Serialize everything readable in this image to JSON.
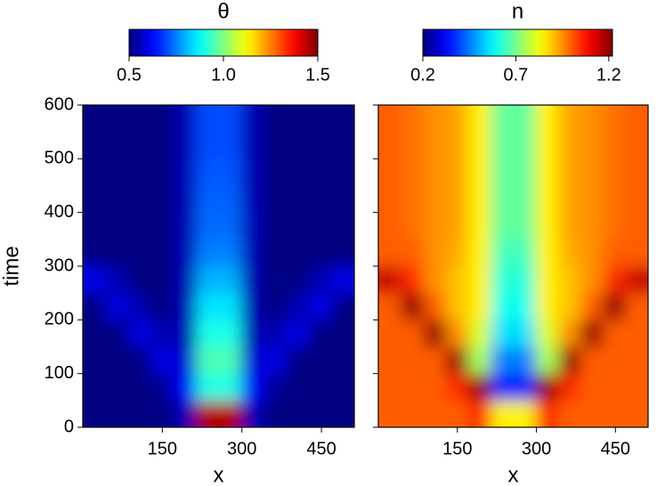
{
  "chart_data": [
    {
      "type": "heatmap",
      "title": "θ",
      "xlabel": "x",
      "ylabel": "time",
      "colormap": "jet",
      "clim": [
        0.5,
        1.5
      ],
      "cticks": [
        0.5,
        {
          "value": 1,
          "label": "1.0"
        },
        1.5
      ],
      "xlim": [
        0,
        512
      ],
      "ylim": [
        0,
        600
      ],
      "xticks": [
        150,
        300,
        450
      ],
      "yticks": [
        0,
        100,
        200,
        300,
        400,
        500,
        600
      ],
      "x": [
        21,
        64,
        107,
        149,
        192,
        235,
        277,
        320,
        363,
        405,
        448,
        491
      ],
      "y": [
        25,
        75,
        125,
        175,
        225,
        275,
        325,
        375,
        425,
        475,
        525,
        575
      ],
      "z": [
        [
          0.5,
          0.5,
          0.5,
          0.5,
          0.55,
          1.45,
          1.45,
          0.55,
          0.5,
          0.5,
          0.5,
          0.5
        ],
        [
          0.5,
          0.5,
          0.5,
          0.52,
          0.62,
          0.9,
          0.9,
          0.62,
          0.52,
          0.5,
          0.5,
          0.5
        ],
        [
          0.5,
          0.5,
          0.5,
          0.6,
          0.58,
          0.95,
          0.95,
          0.58,
          0.6,
          0.5,
          0.5,
          0.5
        ],
        [
          0.5,
          0.5,
          0.6,
          0.55,
          0.55,
          0.9,
          0.9,
          0.55,
          0.55,
          0.6,
          0.5,
          0.5
        ],
        [
          0.5,
          0.6,
          0.55,
          0.5,
          0.55,
          0.85,
          0.85,
          0.55,
          0.5,
          0.55,
          0.6,
          0.5
        ],
        [
          0.6,
          0.55,
          0.5,
          0.5,
          0.55,
          0.8,
          0.8,
          0.55,
          0.5,
          0.5,
          0.55,
          0.6
        ],
        [
          0.5,
          0.5,
          0.5,
          0.5,
          0.55,
          0.75,
          0.75,
          0.55,
          0.5,
          0.5,
          0.5,
          0.5
        ],
        [
          0.5,
          0.5,
          0.5,
          0.5,
          0.55,
          0.73,
          0.73,
          0.55,
          0.5,
          0.5,
          0.5,
          0.5
        ],
        [
          0.5,
          0.5,
          0.5,
          0.5,
          0.55,
          0.72,
          0.72,
          0.55,
          0.5,
          0.5,
          0.5,
          0.5
        ],
        [
          0.5,
          0.5,
          0.5,
          0.5,
          0.55,
          0.71,
          0.71,
          0.55,
          0.5,
          0.5,
          0.5,
          0.5
        ],
        [
          0.5,
          0.5,
          0.5,
          0.5,
          0.55,
          0.7,
          0.7,
          0.55,
          0.5,
          0.5,
          0.5,
          0.5
        ],
        [
          0.5,
          0.5,
          0.5,
          0.5,
          0.55,
          0.7,
          0.7,
          0.55,
          0.5,
          0.5,
          0.5,
          0.5
        ]
      ]
    },
    {
      "type": "heatmap",
      "title": "n",
      "xlabel": "x",
      "sharey": true,
      "colormap": "jet",
      "clim": [
        0.2,
        1.22
      ],
      "cticks": [
        0.2,
        0.7,
        1.2
      ],
      "xlim": [
        0,
        512
      ],
      "ylim": [
        0,
        600
      ],
      "xticks": [
        150,
        300,
        450
      ],
      "x": [
        21,
        64,
        107,
        149,
        192,
        235,
        277,
        320,
        363,
        405,
        448,
        491
      ],
      "y": [
        25,
        75,
        125,
        175,
        225,
        275,
        325,
        375,
        425,
        475,
        525,
        575
      ],
      "z": [
        [
          1.0,
          1.0,
          1.0,
          1.0,
          1.05,
          0.85,
          0.85,
          1.05,
          1.0,
          1.0,
          1.0,
          1.0
        ],
        [
          1.0,
          1.0,
          1.0,
          1.05,
          1.2,
          0.35,
          0.35,
          1.2,
          1.05,
          1.0,
          1.0,
          1.0
        ],
        [
          1.0,
          1.0,
          1.0,
          1.2,
          0.75,
          0.45,
          0.45,
          0.75,
          1.2,
          1.0,
          1.0,
          1.0
        ],
        [
          1.0,
          1.0,
          1.2,
          0.95,
          0.8,
          0.55,
          0.55,
          0.8,
          0.95,
          1.2,
          1.0,
          1.0
        ],
        [
          1.0,
          1.2,
          1.0,
          0.9,
          0.85,
          0.6,
          0.6,
          0.85,
          0.9,
          1.0,
          1.2,
          1.0
        ],
        [
          1.15,
          1.05,
          0.95,
          0.9,
          0.85,
          0.62,
          0.62,
          0.85,
          0.9,
          0.95,
          1.05,
          1.15
        ],
        [
          1.0,
          1.0,
          0.95,
          0.92,
          0.85,
          0.65,
          0.65,
          0.85,
          0.92,
          0.95,
          1.0,
          1.0
        ],
        [
          1.0,
          0.98,
          0.95,
          0.93,
          0.85,
          0.68,
          0.68,
          0.85,
          0.93,
          0.95,
          0.98,
          1.0
        ],
        [
          1.0,
          0.98,
          0.95,
          0.93,
          0.85,
          0.68,
          0.68,
          0.85,
          0.93,
          0.95,
          0.98,
          1.0
        ],
        [
          1.0,
          0.98,
          0.95,
          0.93,
          0.85,
          0.68,
          0.68,
          0.85,
          0.93,
          0.95,
          0.98,
          1.0
        ],
        [
          1.0,
          0.98,
          0.95,
          0.93,
          0.85,
          0.68,
          0.68,
          0.85,
          0.93,
          0.95,
          0.98,
          1.0
        ],
        [
          1.0,
          0.98,
          0.95,
          0.93,
          0.85,
          0.68,
          0.68,
          0.85,
          0.93,
          0.95,
          0.98,
          1.0
        ]
      ]
    }
  ]
}
